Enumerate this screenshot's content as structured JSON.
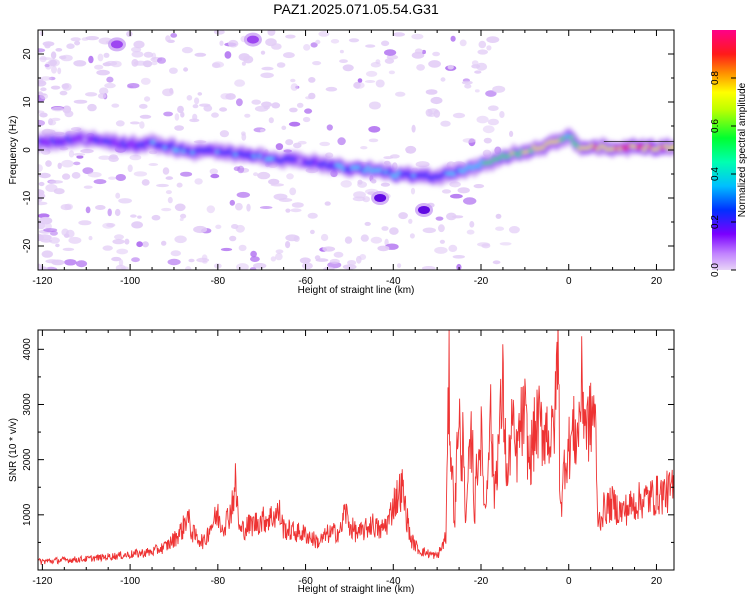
{
  "figure": {
    "title": "PAZ1.2025.071.05.54.G31"
  },
  "chart_data": [
    {
      "type": "heatmap",
      "xlabel": "Height of straight line (km)",
      "ylabel": "Frequency (Hz)",
      "xlim": [
        -121,
        24
      ],
      "ylim": [
        -25,
        25
      ],
      "xticks": [
        -120,
        -100,
        -80,
        -60,
        -40,
        -20,
        0,
        20
      ],
      "yticks": [
        -20,
        -10,
        0,
        10,
        20
      ],
      "colorbar": {
        "label": "Normalized spectral amplitude",
        "range": [
          0,
          1
        ],
        "ticks": [
          0.0,
          0.2,
          0.4,
          0.6,
          0.8
        ],
        "tick_labels": [
          "0.0",
          "0.2",
          "0.4",
          "0.6",
          "0.8"
        ],
        "colormap": [
          "#e8d4f7",
          "#7a00ff",
          "#0030ff",
          "#00e6ff",
          "#00ff40",
          "#ffff00",
          "#ff2020",
          "#ff0088"
        ]
      },
      "trace": {
        "x": [
          -121,
          -110,
          -100,
          -95,
          -90,
          -85,
          -80,
          -75,
          -70,
          -65,
          -60,
          -58,
          -55,
          -50,
          -45,
          -40,
          -35,
          -30,
          -25,
          -20,
          -15,
          -10,
          -5,
          -2,
          0,
          3,
          6,
          10,
          15,
          20,
          24
        ],
        "frequency": [
          1.5,
          2.5,
          1.0,
          1.5,
          0.5,
          -0.5,
          0.0,
          -1.0,
          -1.5,
          -2.0,
          -2.5,
          -2.5,
          -3.0,
          -4.0,
          -4.0,
          -5.0,
          -5.5,
          -5.5,
          -4.5,
          -3.0,
          -1.5,
          -0.5,
          1.0,
          2.0,
          3.0,
          0.5,
          0.5,
          0.5,
          0.5,
          0.5,
          0.5
        ],
        "amplitude": [
          0.15,
          0.2,
          0.25,
          0.3,
          0.35,
          0.3,
          0.3,
          0.3,
          0.3,
          0.3,
          0.15,
          0.2,
          0.3,
          0.35,
          0.4,
          0.4,
          0.3,
          0.25,
          0.35,
          0.5,
          0.6,
          0.7,
          0.75,
          0.8,
          0.5,
          0.75,
          0.8,
          0.82,
          0.85,
          0.85,
          0.85
        ]
      },
      "blobs": [
        {
          "x": -43,
          "frequency": -10,
          "amplitude": 0.2
        },
        {
          "x": -33,
          "frequency": -12.5,
          "amplitude": 0.12
        },
        {
          "x": -103,
          "frequency": 22,
          "amplitude": 0.05
        },
        {
          "x": -72,
          "frequency": 23,
          "amplitude": 0.05
        }
      ]
    },
    {
      "type": "line",
      "xlabel": "Height of straight line (km)",
      "ylabel": "SNR (10 * v/v)",
      "xlim": [
        -121,
        24
      ],
      "ylim": [
        0,
        4350
      ],
      "xticks": [
        -120,
        -100,
        -80,
        -60,
        -40,
        -20,
        0,
        20
      ],
      "yticks": [
        1000,
        2000,
        3000,
        4000
      ],
      "series": [
        {
          "color": "#ee3333",
          "x": [
            -121,
            -115,
            -110,
            -105,
            -100,
            -95,
            -92,
            -90,
            -88,
            -87,
            -86,
            -85,
            -83,
            -82,
            -80,
            -79,
            -78,
            -77,
            -76,
            -75,
            -73,
            -70,
            -68,
            -66,
            -65,
            -63,
            -60,
            -58,
            -57,
            -55,
            -52,
            -51,
            -50,
            -48,
            -46,
            -45,
            -43,
            -41,
            -40,
            -38,
            -37,
            -36,
            -34,
            -32,
            -30,
            -29,
            -28,
            -27.3,
            -27,
            -26,
            -25,
            -24.5,
            -24,
            -23.5,
            -23,
            -22,
            -21.5,
            -21,
            -20,
            -19,
            -18.5,
            -18,
            -17,
            -16,
            -15,
            -14,
            -13,
            -12,
            -11,
            -10,
            -9,
            -8,
            -7,
            -6,
            -5,
            -4,
            -3,
            -2.5,
            -2.2,
            -2,
            -1.5,
            -1,
            0,
            1,
            2,
            3,
            4,
            5,
            6,
            6.5,
            7,
            8,
            10,
            12,
            14,
            16,
            18,
            20,
            22,
            24
          ],
          "y": [
            150,
            180,
            200,
            240,
            280,
            330,
            420,
            550,
            750,
            1000,
            700,
            600,
            500,
            750,
            1000,
            800,
            900,
            1100,
            1550,
            700,
            800,
            900,
            950,
            1050,
            750,
            700,
            650,
            550,
            500,
            650,
            700,
            1100,
            800,
            650,
            750,
            850,
            700,
            900,
            1200,
            1500,
            1000,
            550,
            350,
            300,
            250,
            400,
            600,
            3500,
            2400,
            900,
            3200,
            1400,
            2900,
            600,
            1600,
            2500,
            900,
            1900,
            2400,
            1000,
            1800,
            3100,
            1400,
            2300,
            3300,
            1500,
            2700,
            2000,
            2600,
            2800,
            1900,
            2400,
            2700,
            2500,
            2600,
            2300,
            2900,
            4300,
            2800,
            1400,
            1200,
            2000,
            2200,
            2500,
            2400,
            3350,
            2600,
            2700,
            3000,
            1000,
            900,
            1100,
            1200,
            1050,
            1150,
            1250,
            1300,
            1350,
            1400,
            1450
          ]
        }
      ]
    }
  ]
}
